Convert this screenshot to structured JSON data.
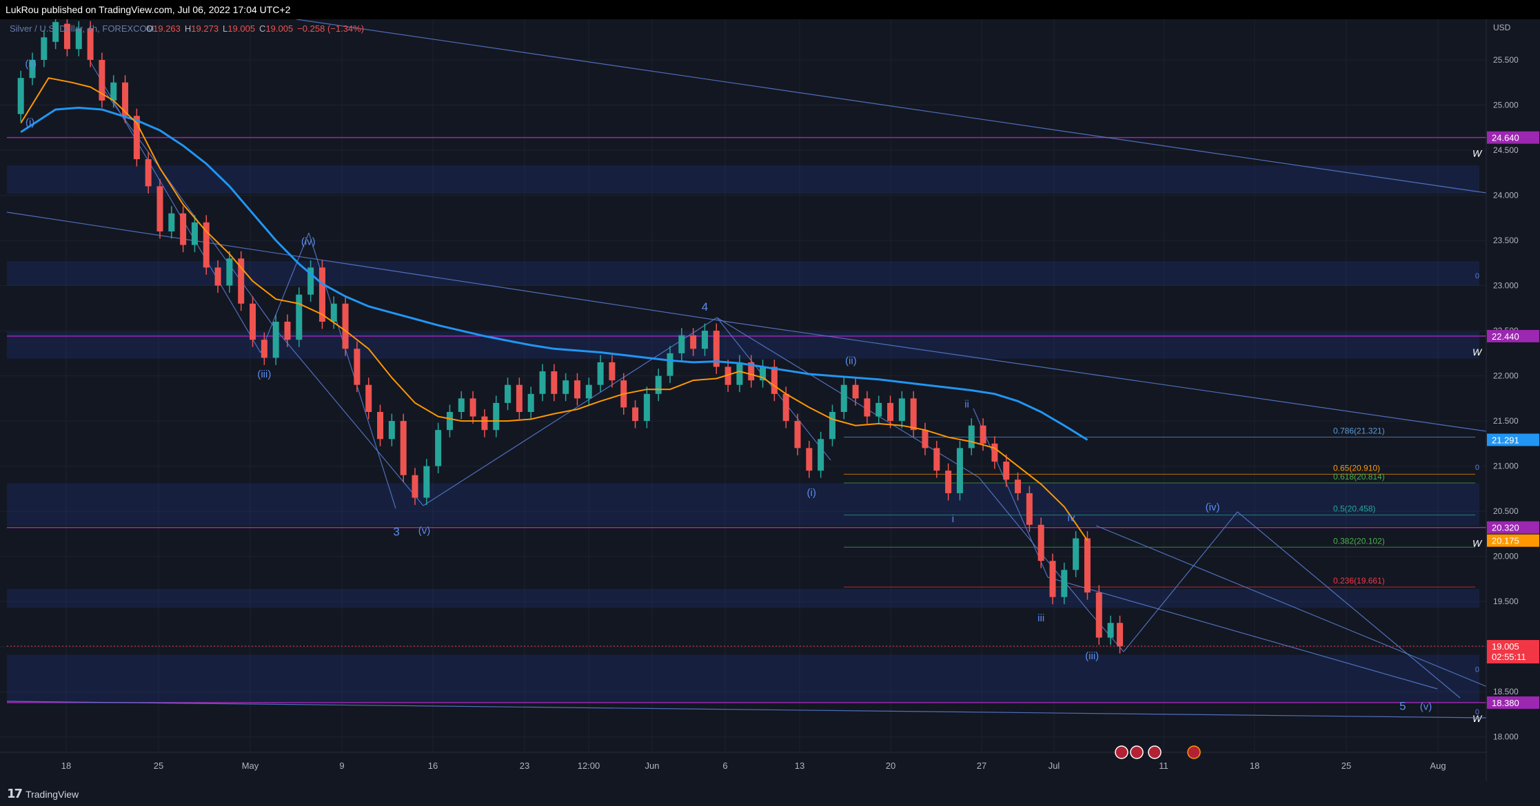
{
  "header": {
    "published_by": "LukRou published on TradingView.com, Jul 06, 2022 17:04 UTC+2"
  },
  "footer": {
    "logo_text": "TradingView",
    "logo_mark": "17"
  },
  "legend": {
    "symbol": "Silver / U.S. Dollar, 4h, FOREXCOM",
    "open_label": "O",
    "open": "19.263",
    "high_label": "H",
    "high": "19.273",
    "low_label": "L",
    "low": "19.005",
    "close_label": "C",
    "close": "19.005",
    "change": "−0.258 (−1.34%)"
  },
  "colors": {
    "background": "#131722",
    "grid": "#1e222d",
    "up": "#26a69a",
    "down": "#ef5350",
    "ema_fast": "#ff9800",
    "ema_slow": "#2196f3",
    "zone": "#1f3a8a",
    "trendline": "#5b7fd6",
    "resistance": "#9c27b0",
    "price_label": "#f23645"
  },
  "chart_data": {
    "type": "candlestick",
    "currency": "USD",
    "xlabels": [
      "18",
      "25",
      "May",
      "9",
      "16",
      "23",
      "12:00",
      "Jun",
      "6",
      "13",
      "20",
      "27",
      "Jul",
      "11",
      "18",
      "25",
      "Aug"
    ],
    "ylabels": [
      "25.500",
      "25.000",
      "24.500",
      "24.000",
      "23.500",
      "23.000",
      "22.500",
      "22.000",
      "21.500",
      "21.000",
      "20.500",
      "20.000",
      "19.500",
      "19.000",
      "18.500",
      "18.000"
    ],
    "y_range": [
      17.83,
      25.95
    ],
    "current_price": "19.005",
    "countdown": "02:55:11",
    "price_labels": [
      {
        "value": "24.640",
        "price": 24.64,
        "color": "#9c27b0"
      },
      {
        "value": "22.440",
        "price": 22.44,
        "color": "#9c27b0"
      },
      {
        "value": "21.291",
        "price": 21.291,
        "color": "#2196f3"
      },
      {
        "value": "20.320",
        "price": 20.32,
        "color": "#9c27b0"
      },
      {
        "value": "20.175",
        "price": 20.175,
        "color": "#ff9800"
      },
      {
        "value": "18.380",
        "price": 18.38,
        "color": "#9c27b0"
      }
    ],
    "horizontal_levels": [
      24.64,
      22.44,
      20.32,
      18.38
    ],
    "zones": [
      [
        24.02,
        24.33
      ],
      [
        23.0,
        23.27
      ],
      [
        22.19,
        22.49
      ],
      [
        20.34,
        20.81
      ],
      [
        19.43,
        19.64
      ],
      [
        18.38,
        18.91
      ]
    ],
    "fib_levels": [
      {
        "label": "0.786(21.321)",
        "price": 21.321,
        "color": "#5b9bd5"
      },
      {
        "label": "0.65(20.910)",
        "price": 20.91,
        "color": "#ff9800"
      },
      {
        "label": "0.618(20.814)",
        "price": 20.814,
        "color": "#4caf50"
      },
      {
        "label": "0.5(20.458)",
        "price": 20.458,
        "color": "#26a69a"
      },
      {
        "label": "0.382(20.102)",
        "price": 20.102,
        "color": "#4caf50"
      },
      {
        "label": "0.236(19.661)",
        "price": 19.661,
        "color": "#f23645"
      }
    ],
    "zero_markers": [
      {
        "label": "0",
        "price": 23.08
      },
      {
        "label": "0",
        "price": 20.96
      },
      {
        "label": "0",
        "price": 18.72
      },
      {
        "label": "0",
        "price": 18.25
      }
    ],
    "wave_labels": [
      {
        "text": "(ii)",
        "x": 0.43,
        "price": 25.42
      },
      {
        "text": "(i)",
        "x": 0.4,
        "price": 24.77
      },
      {
        "text": "(iii)",
        "x": 10.5,
        "price": 21.98
      },
      {
        "text": "(iv)",
        "x": 12.4,
        "price": 23.45
      },
      {
        "text": "3",
        "x": 16.2,
        "price": 20.23
      },
      {
        "text": "(v)",
        "x": 17.4,
        "price": 20.25
      },
      {
        "text": "4",
        "x": 29.5,
        "price": 22.72
      },
      {
        "text": "(ii)",
        "x": 35.8,
        "price": 22.13
      },
      {
        "text": "(i)",
        "x": 34.1,
        "price": 20.67
      },
      {
        "text": "ii",
        "x": 40.8,
        "price": 21.65
      },
      {
        "text": "i",
        "x": 40.2,
        "price": 20.38
      },
      {
        "text": "iv",
        "x": 45.3,
        "price": 20.39
      },
      {
        "text": "iii",
        "x": 44.0,
        "price": 19.28
      },
      {
        "text": "(iii)",
        "x": 46.2,
        "price": 18.86
      },
      {
        "text": "(iv)",
        "x": 51.4,
        "price": 20.51
      },
      {
        "text": "5",
        "x": 59.6,
        "price": 18.3
      },
      {
        "text": "(v)",
        "x": 60.6,
        "price": 18.3
      }
    ],
    "w_labels": [
      24.64,
      22.44,
      20.32,
      18.38
    ],
    "ema_fast": [
      [
        0,
        24.8
      ],
      [
        1.2,
        25.3
      ],
      [
        2.2,
        25.25
      ],
      [
        3,
        25.2
      ],
      [
        4,
        25.05
      ],
      [
        5,
        24.8
      ],
      [
        6,
        24.3
      ],
      [
        7,
        23.9
      ],
      [
        8,
        23.6
      ],
      [
        9,
        23.35
      ],
      [
        10,
        23.05
      ],
      [
        11,
        22.85
      ],
      [
        12,
        22.8
      ],
      [
        13,
        22.68
      ],
      [
        14,
        22.5
      ],
      [
        15,
        22.3
      ],
      [
        16,
        21.98
      ],
      [
        17,
        21.7
      ],
      [
        18,
        21.55
      ],
      [
        19,
        21.5
      ],
      [
        20,
        21.5
      ],
      [
        21,
        21.5
      ],
      [
        22,
        21.52
      ],
      [
        23,
        21.58
      ],
      [
        24,
        21.63
      ],
      [
        25,
        21.72
      ],
      [
        26,
        21.8
      ],
      [
        27,
        21.85
      ],
      [
        28,
        21.85
      ],
      [
        29,
        21.95
      ],
      [
        30,
        21.97
      ],
      [
        31,
        22.05
      ],
      [
        32,
        21.98
      ],
      [
        33,
        21.8
      ],
      [
        34,
        21.65
      ],
      [
        35,
        21.52
      ],
      [
        36,
        21.45
      ],
      [
        37,
        21.47
      ],
      [
        38,
        21.45
      ],
      [
        39,
        21.4
      ],
      [
        40,
        21.32
      ],
      [
        41,
        21.27
      ],
      [
        42,
        21.2
      ],
      [
        43,
        21.0
      ],
      [
        44,
        20.8
      ],
      [
        45,
        20.55
      ],
      [
        46,
        20.175
      ]
    ],
    "ema_slow": [
      [
        0,
        24.7
      ],
      [
        1.5,
        24.95
      ],
      [
        2.5,
        24.97
      ],
      [
        3.5,
        24.95
      ],
      [
        5,
        24.83
      ],
      [
        6,
        24.72
      ],
      [
        7,
        24.55
      ],
      [
        8,
        24.35
      ],
      [
        9,
        24.1
      ],
      [
        10,
        23.8
      ],
      [
        11,
        23.5
      ],
      [
        12,
        23.24
      ],
      [
        13,
        23.02
      ],
      [
        14,
        22.88
      ],
      [
        15,
        22.77
      ],
      [
        16,
        22.7
      ],
      [
        17,
        22.63
      ],
      [
        18,
        22.56
      ],
      [
        19,
        22.5
      ],
      [
        20,
        22.44
      ],
      [
        21,
        22.39
      ],
      [
        22,
        22.34
      ],
      [
        23,
        22.3
      ],
      [
        24,
        22.28
      ],
      [
        25,
        22.26
      ],
      [
        26,
        22.23
      ],
      [
        27,
        22.2
      ],
      [
        28,
        22.17
      ],
      [
        29,
        22.15
      ],
      [
        30,
        22.16
      ],
      [
        31,
        22.14
      ],
      [
        32,
        22.1
      ],
      [
        33,
        22.06
      ],
      [
        34,
        22.02
      ],
      [
        35,
        22.0
      ],
      [
        36,
        21.98
      ],
      [
        37,
        21.96
      ],
      [
        38,
        21.93
      ],
      [
        39,
        21.9
      ],
      [
        40,
        21.87
      ],
      [
        41,
        21.84
      ],
      [
        42,
        21.8
      ],
      [
        43,
        21.72
      ],
      [
        44,
        21.6
      ],
      [
        45,
        21.45
      ],
      [
        46,
        21.291
      ]
    ],
    "ohlc": [
      {
        "x": 0,
        "o": 24.9,
        "c": 25.3
      },
      {
        "x": 0.5,
        "o": 25.3,
        "c": 25.5
      },
      {
        "x": 1,
        "o": 25.5,
        "c": 25.75
      },
      {
        "x": 1.5,
        "o": 25.7,
        "c": 25.92
      },
      {
        "x": 2,
        "o": 25.9,
        "c": 25.62
      },
      {
        "x": 2.5,
        "o": 25.62,
        "c": 25.85
      },
      {
        "x": 3,
        "o": 25.85,
        "c": 25.5
      },
      {
        "x": 3.5,
        "o": 25.5,
        "c": 25.05
      },
      {
        "x": 4,
        "o": 25.05,
        "c": 25.25
      },
      {
        "x": 4.5,
        "o": 25.25,
        "c": 24.88
      },
      {
        "x": 5,
        "o": 24.88,
        "c": 24.4
      },
      {
        "x": 5.5,
        "o": 24.4,
        "c": 24.1
      },
      {
        "x": 6,
        "o": 24.1,
        "c": 23.6
      },
      {
        "x": 6.5,
        "o": 23.6,
        "c": 23.8
      },
      {
        "x": 7,
        "o": 23.8,
        "c": 23.45
      },
      {
        "x": 7.5,
        "o": 23.45,
        "c": 23.7
      },
      {
        "x": 8,
        "o": 23.7,
        "c": 23.2
      },
      {
        "x": 8.5,
        "o": 23.2,
        "c": 23.0
      },
      {
        "x": 9,
        "o": 23.0,
        "c": 23.3
      },
      {
        "x": 9.5,
        "o": 23.3,
        "c": 22.8
      },
      {
        "x": 10,
        "o": 22.8,
        "c": 22.4
      },
      {
        "x": 10.5,
        "o": 22.4,
        "c": 22.2
      },
      {
        "x": 11,
        "o": 22.2,
        "c": 22.6
      },
      {
        "x": 11.5,
        "o": 22.6,
        "c": 22.4
      },
      {
        "x": 12,
        "o": 22.4,
        "c": 22.9
      },
      {
        "x": 12.5,
        "o": 22.9,
        "c": 23.2
      },
      {
        "x": 13,
        "o": 23.2,
        "c": 22.6
      },
      {
        "x": 13.5,
        "o": 22.6,
        "c": 22.8
      },
      {
        "x": 14,
        "o": 22.8,
        "c": 22.3
      },
      {
        "x": 14.5,
        "o": 22.3,
        "c": 21.9
      },
      {
        "x": 15,
        "o": 21.9,
        "c": 21.6
      },
      {
        "x": 15.5,
        "o": 21.6,
        "c": 21.3
      },
      {
        "x": 16,
        "o": 21.3,
        "c": 21.5
      },
      {
        "x": 16.5,
        "o": 21.5,
        "c": 20.9
      },
      {
        "x": 17,
        "o": 20.9,
        "c": 20.65
      },
      {
        "x": 17.5,
        "o": 20.65,
        "c": 21.0
      },
      {
        "x": 18,
        "o": 21.0,
        "c": 21.4
      },
      {
        "x": 18.5,
        "o": 21.4,
        "c": 21.6
      },
      {
        "x": 19,
        "o": 21.6,
        "c": 21.75
      },
      {
        "x": 19.5,
        "o": 21.75,
        "c": 21.55
      },
      {
        "x": 20,
        "o": 21.55,
        "c": 21.4
      },
      {
        "x": 20.5,
        "o": 21.4,
        "c": 21.7
      },
      {
        "x": 21,
        "o": 21.7,
        "c": 21.9
      },
      {
        "x": 21.5,
        "o": 21.9,
        "c": 21.6
      },
      {
        "x": 22,
        "o": 21.6,
        "c": 21.8
      },
      {
        "x": 22.5,
        "o": 21.8,
        "c": 22.05
      },
      {
        "x": 23,
        "o": 22.05,
        "c": 21.8
      },
      {
        "x": 23.5,
        "o": 21.8,
        "c": 21.95
      },
      {
        "x": 24,
        "o": 21.95,
        "c": 21.75
      },
      {
        "x": 24.5,
        "o": 21.75,
        "c": 21.9
      },
      {
        "x": 25,
        "o": 21.9,
        "c": 22.15
      },
      {
        "x": 25.5,
        "o": 22.15,
        "c": 21.95
      },
      {
        "x": 26,
        "o": 21.95,
        "c": 21.65
      },
      {
        "x": 26.5,
        "o": 21.65,
        "c": 21.5
      },
      {
        "x": 27,
        "o": 21.5,
        "c": 21.8
      },
      {
        "x": 27.5,
        "o": 21.8,
        "c": 22.0
      },
      {
        "x": 28,
        "o": 22.0,
        "c": 22.25
      },
      {
        "x": 28.5,
        "o": 22.25,
        "c": 22.45
      },
      {
        "x": 29,
        "o": 22.45,
        "c": 22.3
      },
      {
        "x": 29.5,
        "o": 22.3,
        "c": 22.5
      },
      {
        "x": 30,
        "o": 22.5,
        "c": 22.1
      },
      {
        "x": 30.5,
        "o": 22.1,
        "c": 21.9
      },
      {
        "x": 31,
        "o": 21.9,
        "c": 22.15
      },
      {
        "x": 31.5,
        "o": 22.15,
        "c": 21.95
      },
      {
        "x": 32,
        "o": 21.95,
        "c": 22.1
      },
      {
        "x": 32.5,
        "o": 22.1,
        "c": 21.8
      },
      {
        "x": 33,
        "o": 21.8,
        "c": 21.5
      },
      {
        "x": 33.5,
        "o": 21.5,
        "c": 21.2
      },
      {
        "x": 34,
        "o": 21.2,
        "c": 20.95
      },
      {
        "x": 34.5,
        "o": 20.95,
        "c": 21.3
      },
      {
        "x": 35,
        "o": 21.3,
        "c": 21.6
      },
      {
        "x": 35.5,
        "o": 21.6,
        "c": 21.9
      },
      {
        "x": 36,
        "o": 21.9,
        "c": 21.75
      },
      {
        "x": 36.5,
        "o": 21.75,
        "c": 21.55
      },
      {
        "x": 37,
        "o": 21.55,
        "c": 21.7
      },
      {
        "x": 37.5,
        "o": 21.7,
        "c": 21.5
      },
      {
        "x": 38,
        "o": 21.5,
        "c": 21.75
      },
      {
        "x": 38.5,
        "o": 21.75,
        "c": 21.4
      },
      {
        "x": 39,
        "o": 21.4,
        "c": 21.2
      },
      {
        "x": 39.5,
        "o": 21.2,
        "c": 20.95
      },
      {
        "x": 40,
        "o": 20.95,
        "c": 20.7
      },
      {
        "x": 40.5,
        "o": 20.7,
        "c": 21.2
      },
      {
        "x": 41,
        "o": 21.2,
        "c": 21.45
      },
      {
        "x": 41.5,
        "o": 21.45,
        "c": 21.25
      },
      {
        "x": 42,
        "o": 21.25,
        "c": 21.05
      },
      {
        "x": 42.5,
        "o": 21.05,
        "c": 20.85
      },
      {
        "x": 43,
        "o": 20.85,
        "c": 20.7
      },
      {
        "x": 43.5,
        "o": 20.7,
        "c": 20.35
      },
      {
        "x": 44,
        "o": 20.35,
        "c": 19.95
      },
      {
        "x": 44.5,
        "o": 19.95,
        "c": 19.55
      },
      {
        "x": 45,
        "o": 19.55,
        "c": 19.85
      },
      {
        "x": 45.5,
        "o": 19.85,
        "c": 20.2
      },
      {
        "x": 46,
        "o": 20.2,
        "c": 19.6
      },
      {
        "x": 46.5,
        "o": 19.6,
        "c": 19.1
      },
      {
        "x": 47,
        "o": 19.1,
        "c": 19.263
      },
      {
        "x": 47.4,
        "o": 19.263,
        "c": 19.005
      }
    ]
  }
}
